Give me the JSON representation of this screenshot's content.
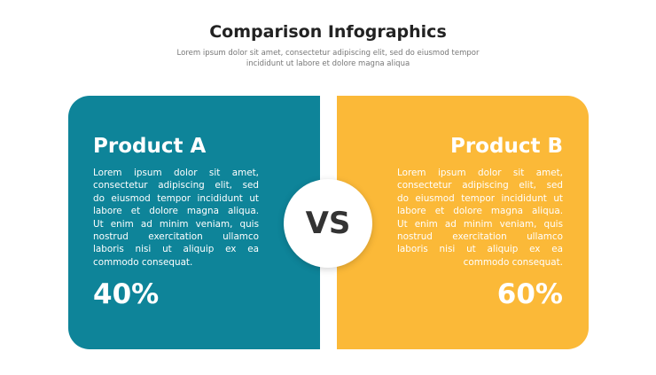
{
  "title": "Comparison Infographics",
  "subtitle": [
    "Lorem ipsum dolor sit amet, consectetur adipiscing elit, sed do eiusmod tempor",
    "incididunt ut labore et dolore magna aliqua"
  ],
  "vs": "VS",
  "panels": [
    {
      "title": "Product A",
      "body": [
        "Lorem ipsum dolor sit amet,",
        "consectetur adipiscing elit, sed",
        "do eiusmod tempor incididunt ut",
        "labore et dolore magna aliqua.",
        "Ut enim ad minim veniam, quis",
        "nostrud exercitation ullamco",
        "laboris nisi ut aliquip ex ea",
        "commodo consequat."
      ],
      "percent": "40%"
    },
    {
      "title": "Product B",
      "body": [
        "Lorem ipsum dolor sit amet,",
        "consectetur adipiscing elit, sed",
        "do eiusmod tempor incididunt ut",
        "labore et dolore magna aliqua.",
        "Ut enim ad minim veniam, quis",
        "nostrud exercitation ullamco",
        "laboris nisi ut aliquip ex ea",
        "commodo consequat."
      ],
      "percent": "60%"
    }
  ]
}
